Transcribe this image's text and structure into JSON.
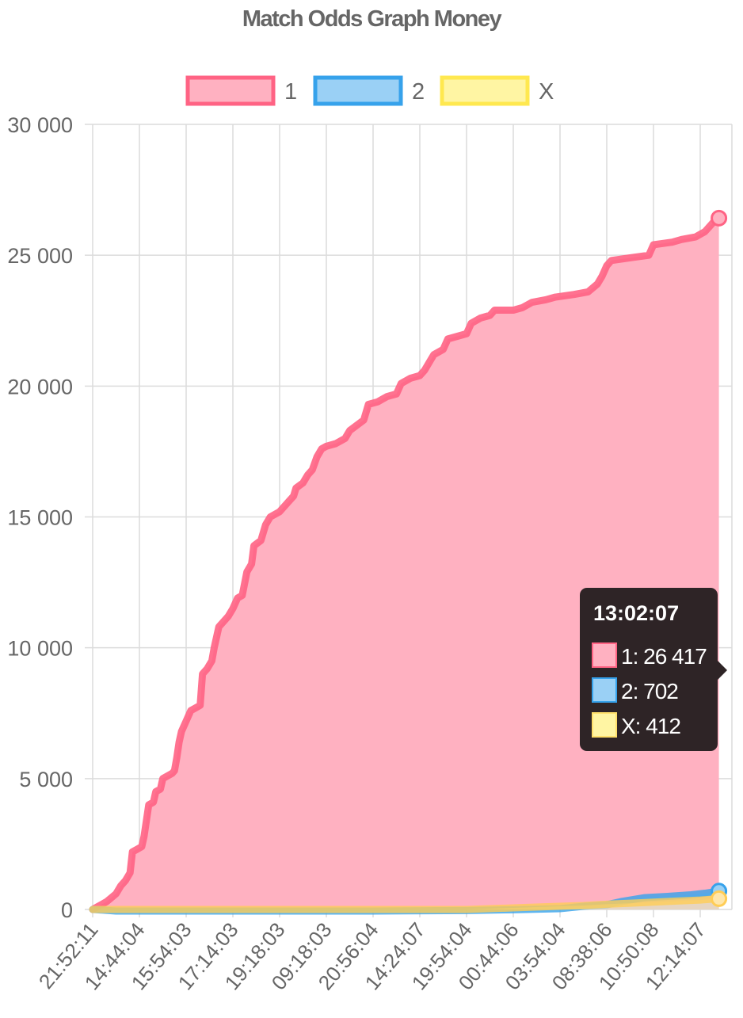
{
  "chart_data": {
    "type": "area",
    "title": "Match Odds Graph Money",
    "xlabel": "",
    "ylabel": "",
    "ylim": [
      0,
      30000
    ],
    "y_ticks": [
      0,
      5000,
      10000,
      15000,
      20000,
      25000,
      30000
    ],
    "y_tick_labels": [
      "0",
      "5 000",
      "10 000",
      "15 000",
      "20 000",
      "25 000",
      "30 000"
    ],
    "x_tick_labels": [
      "21:52:11",
      "14:44:04",
      "15:54:03",
      "17:14:03",
      "19:18:03",
      "09:18:03",
      "20:56:04",
      "14:24:07",
      "19:54:04",
      "00:44:06",
      "03:54:04",
      "08:38:06",
      "10:50:08",
      "12:14:07"
    ],
    "x_range": [
      0,
      13.7
    ],
    "grid": true,
    "legend_position": "top",
    "series": [
      {
        "name": "1",
        "color": "#ff6384",
        "fill": "#ffb1c1",
        "points": [
          [
            0,
            0
          ],
          [
            0.1,
            100
          ],
          [
            0.2,
            200
          ],
          [
            0.3,
            300
          ],
          [
            0.4,
            450
          ],
          [
            0.5,
            600
          ],
          [
            0.6,
            900
          ],
          [
            0.7,
            1100
          ],
          [
            0.8,
            1400
          ],
          [
            0.85,
            2200
          ],
          [
            0.95,
            2300
          ],
          [
            1.05,
            2400
          ],
          [
            1.1,
            2800
          ],
          [
            1.2,
            4000
          ],
          [
            1.3,
            4100
          ],
          [
            1.35,
            4500
          ],
          [
            1.45,
            4600
          ],
          [
            1.5,
            5000
          ],
          [
            1.7,
            5200
          ],
          [
            1.75,
            5300
          ],
          [
            1.8,
            5800
          ],
          [
            1.85,
            6400
          ],
          [
            1.9,
            6800
          ],
          [
            2.0,
            7200
          ],
          [
            2.1,
            7600
          ],
          [
            2.2,
            7700
          ],
          [
            2.3,
            7800
          ],
          [
            2.35,
            9000
          ],
          [
            2.45,
            9200
          ],
          [
            2.55,
            9500
          ],
          [
            2.6,
            10000
          ],
          [
            2.7,
            10800
          ],
          [
            2.9,
            11200
          ],
          [
            3.0,
            11500
          ],
          [
            3.1,
            11900
          ],
          [
            3.2,
            12000
          ],
          [
            3.3,
            12900
          ],
          [
            3.4,
            13200
          ],
          [
            3.45,
            13900
          ],
          [
            3.6,
            14100
          ],
          [
            3.7,
            14700
          ],
          [
            3.8,
            15000
          ],
          [
            4.0,
            15200
          ],
          [
            4.1,
            15400
          ],
          [
            4.2,
            15600
          ],
          [
            4.3,
            15800
          ],
          [
            4.35,
            16100
          ],
          [
            4.5,
            16300
          ],
          [
            4.6,
            16600
          ],
          [
            4.7,
            16800
          ],
          [
            4.8,
            17300
          ],
          [
            4.9,
            17600
          ],
          [
            5.0,
            17700
          ],
          [
            5.2,
            17800
          ],
          [
            5.4,
            18000
          ],
          [
            5.5,
            18300
          ],
          [
            5.65,
            18500
          ],
          [
            5.8,
            18700
          ],
          [
            5.9,
            19300
          ],
          [
            6.1,
            19400
          ],
          [
            6.2,
            19500
          ],
          [
            6.3,
            19600
          ],
          [
            6.5,
            19700
          ],
          [
            6.6,
            20100
          ],
          [
            6.8,
            20300
          ],
          [
            7.0,
            20400
          ],
          [
            7.1,
            20600
          ],
          [
            7.2,
            20900
          ],
          [
            7.3,
            21200
          ],
          [
            7.5,
            21400
          ],
          [
            7.6,
            21800
          ],
          [
            8.0,
            22000
          ],
          [
            8.1,
            22400
          ],
          [
            8.3,
            22600
          ],
          [
            8.5,
            22700
          ],
          [
            8.6,
            22900
          ],
          [
            9.0,
            22900
          ],
          [
            9.2,
            23000
          ],
          [
            9.4,
            23200
          ],
          [
            9.7,
            23300
          ],
          [
            9.9,
            23400
          ],
          [
            10.3,
            23500
          ],
          [
            10.6,
            23600
          ],
          [
            10.8,
            23900
          ],
          [
            10.9,
            24200
          ],
          [
            11.0,
            24600
          ],
          [
            11.1,
            24800
          ],
          [
            11.5,
            24900
          ],
          [
            11.9,
            25000
          ],
          [
            12.0,
            25400
          ],
          [
            12.4,
            25500
          ],
          [
            12.6,
            25600
          ],
          [
            12.9,
            25700
          ],
          [
            13.1,
            25900
          ],
          [
            13.2,
            26100
          ],
          [
            13.3,
            26300
          ],
          [
            13.4,
            26417
          ]
        ]
      },
      {
        "name": "2",
        "color": "#36a2eb",
        "fill": "#9ad0f5",
        "points": [
          [
            0,
            0
          ],
          [
            0.5,
            -60
          ],
          [
            2.0,
            -60
          ],
          [
            4.0,
            -60
          ],
          [
            6.0,
            -60
          ],
          [
            8.0,
            -40
          ],
          [
            9.0,
            -10
          ],
          [
            10.0,
            30
          ],
          [
            10.5,
            120
          ],
          [
            11.0,
            180
          ],
          [
            11.3,
            300
          ],
          [
            11.8,
            450
          ],
          [
            12.3,
            500
          ],
          [
            12.8,
            560
          ],
          [
            13.1,
            620
          ],
          [
            13.4,
            702
          ]
        ]
      },
      {
        "name": "X",
        "color": "#ffcd56",
        "fill": "#ffe6aa",
        "points": [
          [
            0,
            0
          ],
          [
            2.0,
            0
          ],
          [
            4.0,
            0
          ],
          [
            6.0,
            0
          ],
          [
            8.0,
            0
          ],
          [
            9.0,
            60
          ],
          [
            9.6,
            100
          ],
          [
            10.5,
            150
          ],
          [
            11.0,
            200
          ],
          [
            11.5,
            240
          ],
          [
            12.0,
            280
          ],
          [
            12.5,
            320
          ],
          [
            13.0,
            360
          ],
          [
            13.4,
            412
          ]
        ]
      }
    ],
    "tooltip": {
      "title": "13:02:07",
      "rows": [
        {
          "label": "1: 26 417",
          "color": "#ffb1c1",
          "border": "#ff6384"
        },
        {
          "label": "2: 702",
          "color": "#9ad0f5",
          "border": "#36a2eb"
        },
        {
          "label": "X: 412",
          "color": "#fff5a3",
          "border": "#ffe06b"
        }
      ]
    }
  }
}
